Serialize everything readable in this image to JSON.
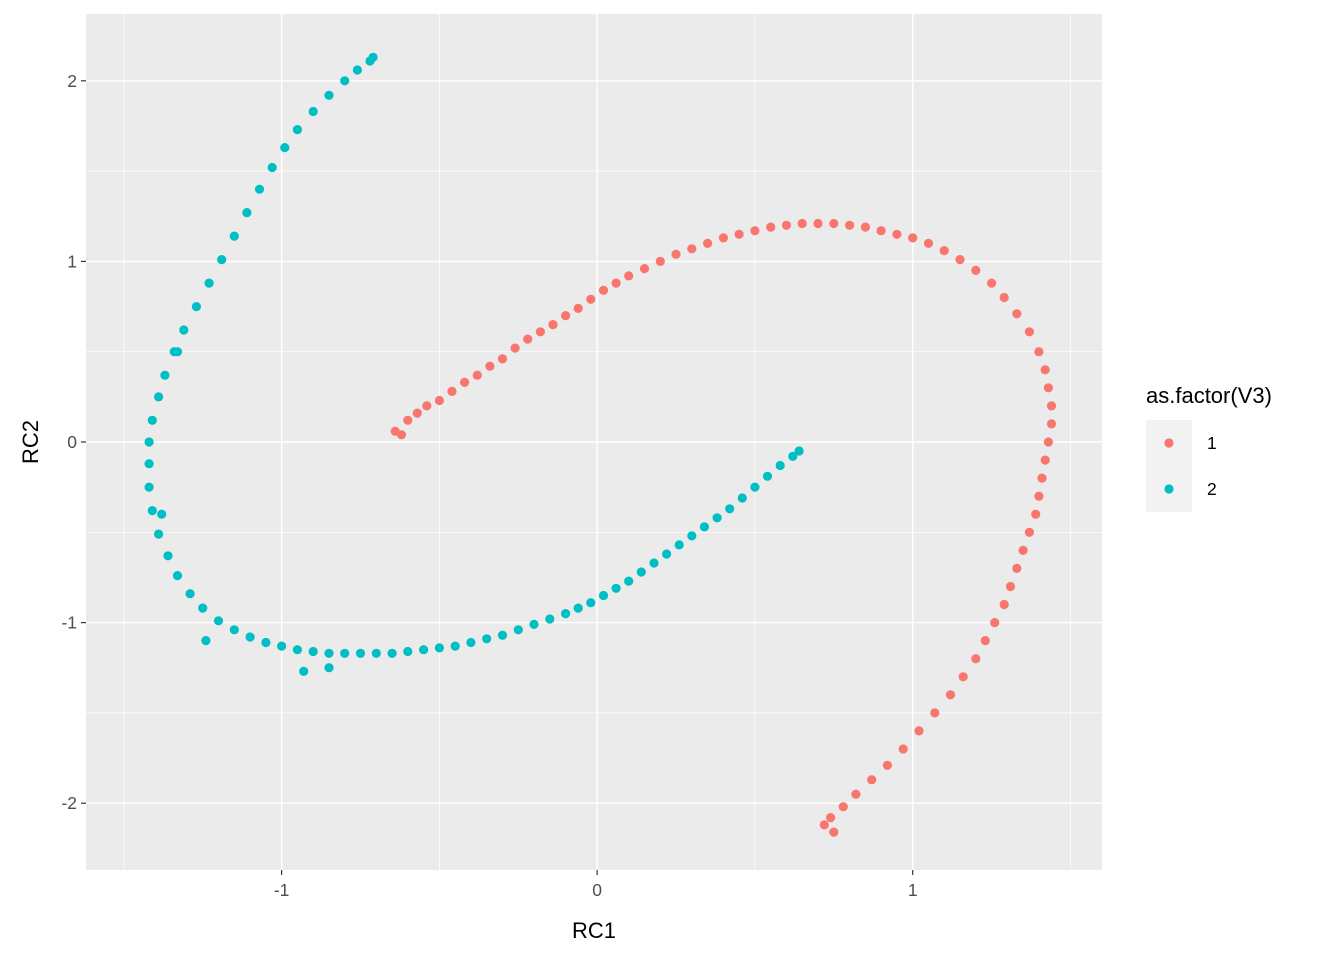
{
  "chart_data": {
    "type": "scatter",
    "title": "",
    "xlabel": "RC1",
    "ylabel": "RC2",
    "xlim": [
      -1.62,
      1.6
    ],
    "ylim": [
      -2.37,
      2.37
    ],
    "x_ticks": [
      -1,
      0,
      1
    ],
    "x_tick_labels": [
      "-1",
      "0",
      "1"
    ],
    "y_ticks": [
      -2,
      -1,
      0,
      1,
      2
    ],
    "y_tick_labels": [
      "-2",
      "-1",
      "0",
      "1",
      "2"
    ],
    "grid": true,
    "legend": {
      "title": "as.factor(V3)",
      "placement": "right"
    },
    "series": [
      {
        "name": "1",
        "color": "#F8766D",
        "points": [
          [
            -0.64,
            0.06
          ],
          [
            -0.62,
            0.04
          ],
          [
            -0.6,
            0.12
          ],
          [
            -0.57,
            0.16
          ],
          [
            -0.54,
            0.2
          ],
          [
            -0.5,
            0.23
          ],
          [
            -0.46,
            0.28
          ],
          [
            -0.42,
            0.33
          ],
          [
            -0.38,
            0.37
          ],
          [
            -0.34,
            0.42
          ],
          [
            -0.3,
            0.46
          ],
          [
            -0.26,
            0.52
          ],
          [
            -0.22,
            0.57
          ],
          [
            -0.18,
            0.61
          ],
          [
            -0.14,
            0.65
          ],
          [
            -0.1,
            0.7
          ],
          [
            -0.06,
            0.74
          ],
          [
            -0.02,
            0.79
          ],
          [
            0.02,
            0.84
          ],
          [
            0.06,
            0.88
          ],
          [
            0.1,
            0.92
          ],
          [
            0.15,
            0.96
          ],
          [
            0.2,
            1.0
          ],
          [
            0.25,
            1.04
          ],
          [
            0.3,
            1.07
          ],
          [
            0.35,
            1.1
          ],
          [
            0.4,
            1.13
          ],
          [
            0.45,
            1.15
          ],
          [
            0.5,
            1.17
          ],
          [
            0.55,
            1.19
          ],
          [
            0.6,
            1.2
          ],
          [
            0.65,
            1.21
          ],
          [
            0.7,
            1.21
          ],
          [
            0.75,
            1.21
          ],
          [
            0.8,
            1.2
          ],
          [
            0.85,
            1.19
          ],
          [
            0.9,
            1.17
          ],
          [
            0.95,
            1.15
          ],
          [
            1.0,
            1.13
          ],
          [
            1.05,
            1.1
          ],
          [
            1.1,
            1.06
          ],
          [
            1.15,
            1.01
          ],
          [
            1.2,
            0.95
          ],
          [
            1.25,
            0.88
          ],
          [
            1.29,
            0.8
          ],
          [
            1.33,
            0.71
          ],
          [
            1.37,
            0.61
          ],
          [
            1.4,
            0.5
          ],
          [
            1.42,
            0.4
          ],
          [
            1.43,
            0.3
          ],
          [
            1.44,
            0.2
          ],
          [
            1.44,
            0.1
          ],
          [
            1.43,
            0.0
          ],
          [
            1.42,
            -0.1
          ],
          [
            1.41,
            -0.2
          ],
          [
            1.4,
            -0.3
          ],
          [
            1.39,
            -0.4
          ],
          [
            1.37,
            -0.5
          ],
          [
            1.35,
            -0.6
          ],
          [
            1.33,
            -0.7
          ],
          [
            1.31,
            -0.8
          ],
          [
            1.29,
            -0.9
          ],
          [
            1.26,
            -1.0
          ],
          [
            1.23,
            -1.1
          ],
          [
            1.2,
            -1.2
          ],
          [
            1.16,
            -1.3
          ],
          [
            1.12,
            -1.4
          ],
          [
            1.07,
            -1.5
          ],
          [
            1.02,
            -1.6
          ],
          [
            0.97,
            -1.7
          ],
          [
            0.92,
            -1.79
          ],
          [
            0.87,
            -1.87
          ],
          [
            0.82,
            -1.95
          ],
          [
            0.78,
            -2.02
          ],
          [
            0.74,
            -2.08
          ],
          [
            0.72,
            -2.12
          ],
          [
            0.75,
            -2.16
          ]
        ]
      },
      {
        "name": "2",
        "color": "#00BFC4",
        "points": [
          [
            0.64,
            -0.05
          ],
          [
            0.62,
            -0.08
          ],
          [
            0.58,
            -0.13
          ],
          [
            0.54,
            -0.19
          ],
          [
            0.5,
            -0.25
          ],
          [
            0.46,
            -0.31
          ],
          [
            0.42,
            -0.37
          ],
          [
            0.38,
            -0.42
          ],
          [
            0.34,
            -0.47
          ],
          [
            0.3,
            -0.52
          ],
          [
            0.26,
            -0.57
          ],
          [
            0.22,
            -0.62
          ],
          [
            0.18,
            -0.67
          ],
          [
            0.14,
            -0.72
          ],
          [
            0.1,
            -0.77
          ],
          [
            0.06,
            -0.81
          ],
          [
            0.02,
            -0.85
          ],
          [
            -0.02,
            -0.89
          ],
          [
            -0.06,
            -0.92
          ],
          [
            -0.1,
            -0.95
          ],
          [
            -0.15,
            -0.98
          ],
          [
            -0.2,
            -1.01
          ],
          [
            -0.25,
            -1.04
          ],
          [
            -0.3,
            -1.07
          ],
          [
            -0.35,
            -1.09
          ],
          [
            -0.4,
            -1.11
          ],
          [
            -0.45,
            -1.13
          ],
          [
            -0.5,
            -1.14
          ],
          [
            -0.55,
            -1.15
          ],
          [
            -0.6,
            -1.16
          ],
          [
            -0.65,
            -1.17
          ],
          [
            -0.7,
            -1.17
          ],
          [
            -0.75,
            -1.17
          ],
          [
            -0.8,
            -1.17
          ],
          [
            -0.85,
            -1.17
          ],
          [
            -0.9,
            -1.16
          ],
          [
            -0.95,
            -1.15
          ],
          [
            -1.0,
            -1.13
          ],
          [
            -1.05,
            -1.11
          ],
          [
            -1.1,
            -1.08
          ],
          [
            -1.15,
            -1.04
          ],
          [
            -1.2,
            -0.99
          ],
          [
            -1.25,
            -0.92
          ],
          [
            -1.29,
            -0.84
          ],
          [
            -1.33,
            -0.74
          ],
          [
            -1.36,
            -0.63
          ],
          [
            -1.39,
            -0.51
          ],
          [
            -1.41,
            -0.38
          ],
          [
            -1.42,
            -0.25
          ],
          [
            -1.42,
            -0.12
          ],
          [
            -1.42,
            0.0
          ],
          [
            -1.41,
            0.12
          ],
          [
            -1.39,
            0.25
          ],
          [
            -1.37,
            0.37
          ],
          [
            -1.34,
            0.5
          ],
          [
            -1.31,
            0.62
          ],
          [
            -1.27,
            0.75
          ],
          [
            -1.23,
            0.88
          ],
          [
            -1.19,
            1.01
          ],
          [
            -1.15,
            1.14
          ],
          [
            -1.11,
            1.27
          ],
          [
            -1.07,
            1.4
          ],
          [
            -1.03,
            1.52
          ],
          [
            -0.99,
            1.63
          ],
          [
            -0.95,
            1.73
          ],
          [
            -0.9,
            1.83
          ],
          [
            -0.85,
            1.92
          ],
          [
            -0.8,
            2.0
          ],
          [
            -0.76,
            2.06
          ],
          [
            -0.72,
            2.11
          ],
          [
            -1.38,
            -0.4
          ],
          [
            -1.24,
            -1.1
          ],
          [
            -0.93,
            -1.27
          ],
          [
            -0.85,
            -1.25
          ],
          [
            -1.33,
            0.5
          ],
          [
            -0.71,
            2.13
          ]
        ]
      }
    ]
  }
}
